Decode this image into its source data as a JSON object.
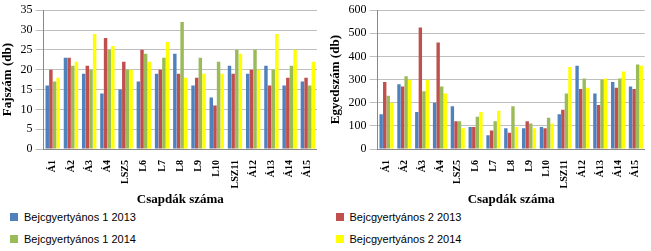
{
  "chart_data": [
    {
      "type": "bar",
      "x_label": "Csapdák száma",
      "y_label": "Fajszám (db)",
      "categories": [
        "Á1",
        "Á2",
        "Á3",
        "Á4",
        "LSZ5",
        "L6",
        "L7",
        "L8",
        "L9",
        "L10",
        "LSZ11",
        "Á12",
        "Á13",
        "Á14",
        "Á15"
      ],
      "series": [
        {
          "name": "Bejcgyertyános 1 2013",
          "color": "#4f81bd",
          "values": [
            16,
            23,
            19,
            14,
            15,
            17,
            19,
            24,
            16,
            13,
            21,
            19,
            21,
            16,
            17
          ]
        },
        {
          "name": "Bejcgyertyános 2 2013",
          "color": "#c0504d",
          "values": [
            20,
            23,
            21,
            28,
            22,
            25,
            20,
            19,
            18,
            11,
            19,
            20,
            16,
            18,
            18
          ]
        },
        {
          "name": "Bejcgyertyános 1 2014",
          "color": "#9bbb59",
          "values": [
            17,
            21,
            20,
            25,
            20,
            24,
            23,
            32,
            23,
            22,
            25,
            25,
            20,
            21,
            16
          ]
        },
        {
          "name": "Bejcgyertyános 2 2014",
          "color": "#ffff00",
          "values": [
            18,
            22,
            29,
            26,
            20,
            22,
            27,
            18,
            19,
            19,
            24,
            20,
            29,
            25,
            22
          ]
        }
      ],
      "ylim": [
        0,
        35
      ],
      "yticks": [
        0,
        5,
        10,
        15,
        20,
        25,
        30,
        35
      ],
      "grid": true,
      "legend": "bottom"
    },
    {
      "type": "bar",
      "x_label": "Csapdák száma",
      "y_label": "Egyedszám (db)",
      "categories": [
        "Á1",
        "Á2",
        "Á3",
        "Á4",
        "LSZ5",
        "L6",
        "L7",
        "L8",
        "L9",
        "L10",
        "LSZ11",
        "Á12",
        "Á13",
        "Á14",
        "Á15"
      ],
      "series": [
        {
          "name": "Bejcgyertyános 1 2013",
          "color": "#4f81bd",
          "values": [
            150,
            280,
            160,
            200,
            185,
            95,
            60,
            90,
            90,
            95,
            150,
            360,
            240,
            290,
            270
          ]
        },
        {
          "name": "Bejcgyertyános 2 2013",
          "color": "#c0504d",
          "values": [
            290,
            270,
            525,
            460,
            120,
            95,
            80,
            70,
            120,
            90,
            170,
            260,
            190,
            265,
            260
          ]
        },
        {
          "name": "Bejcgyertyános 1 2014",
          "color": "#9bbb59",
          "values": [
            230,
            315,
            250,
            270,
            120,
            140,
            120,
            185,
            110,
            135,
            240,
            305,
            300,
            305,
            365
          ]
        },
        {
          "name": "Bejcgyertyános 2 2014",
          "color": "#ffff00",
          "values": [
            200,
            300,
            300,
            240,
            90,
            160,
            165,
            95,
            90,
            110,
            355,
            265,
            305,
            335,
            360
          ]
        }
      ],
      "ylim": [
        0,
        600
      ],
      "yticks": [
        0,
        100,
        200,
        300,
        400,
        500,
        600
      ],
      "grid": true,
      "legend": "bottom"
    }
  ]
}
